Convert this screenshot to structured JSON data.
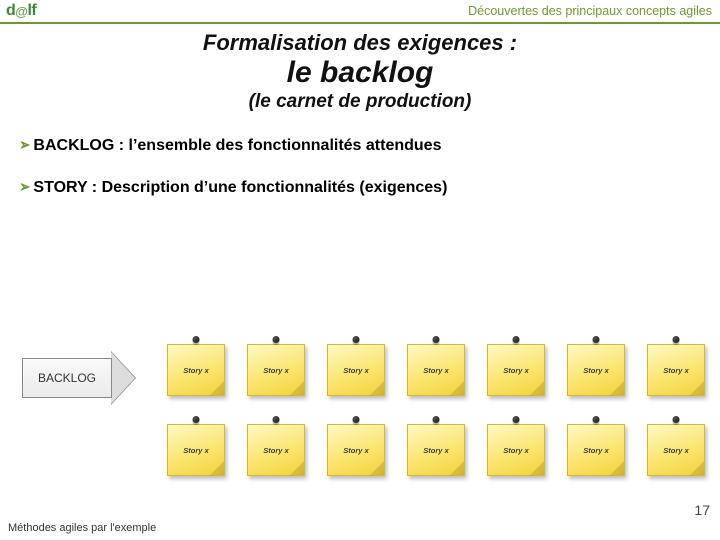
{
  "header": {
    "logo_d": "d",
    "logo_at": "@",
    "logo_lf": "lf",
    "text": "Découvertes des principaux concepts agiles"
  },
  "titles": {
    "line1": "Formalisation des exigences :",
    "line2": "le backlog",
    "line3": "(le carnet de production)"
  },
  "bullets": [
    "BACKLOG : l’ensemble des fonctionnalités attendues",
    "STORY : Description d’une fonctionnalités (exigences)"
  ],
  "diagram": {
    "arrow_label": "BACKLOG",
    "sticky_label": "Story x",
    "row1_count": 7,
    "row2_count": 7
  },
  "footer": {
    "left": "Méthodes agiles par l'exemple",
    "page": "17"
  },
  "colors": {
    "accent": "#6b9b2f",
    "sticky": "#fbe36a"
  }
}
